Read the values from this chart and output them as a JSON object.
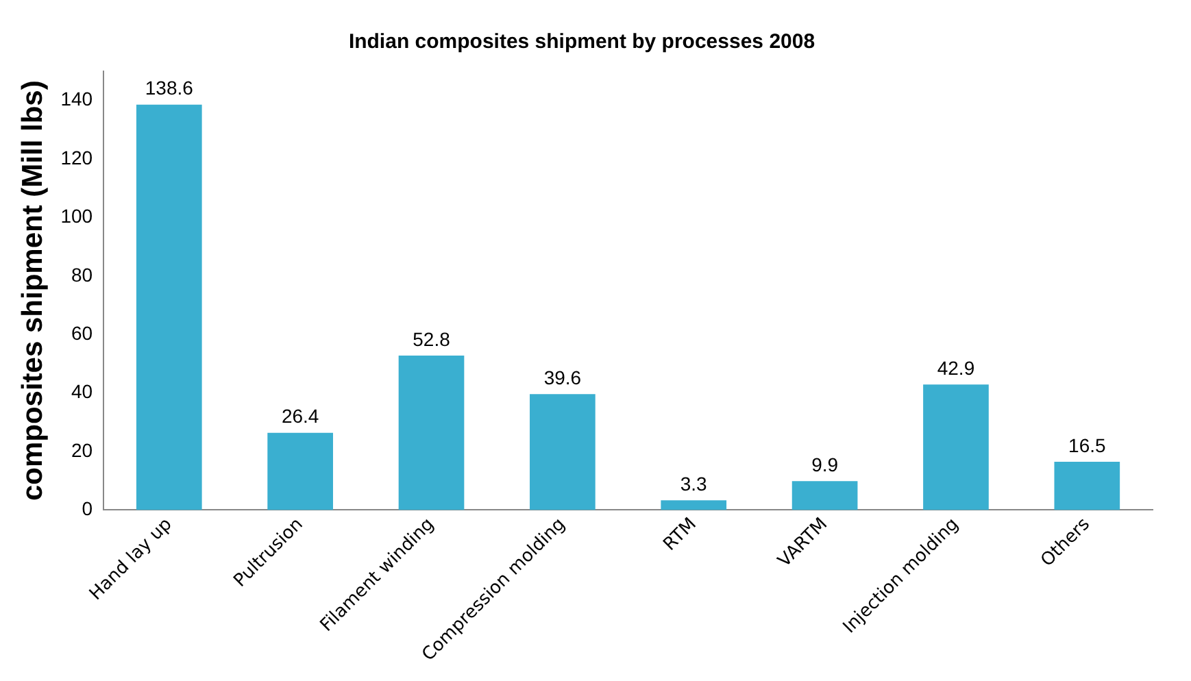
{
  "chart_data": {
    "type": "bar",
    "title": "Indian composites shipment by processes 2008",
    "ylabel": "composites shipment (Mill lbs)",
    "categories": [
      "Hand lay up",
      "Pultrusion",
      "Filament winding",
      "Compression molding",
      "RTM",
      "VARTM",
      "Injection molding",
      "Others"
    ],
    "values": [
      138.6,
      26.4,
      52.8,
      39.6,
      3.3,
      9.9,
      42.9,
      16.5
    ],
    "color": "#3aafd0",
    "ylim": [
      0,
      150
    ],
    "yticks": [
      0,
      20,
      40,
      60,
      80,
      100,
      120,
      140
    ],
    "grid": false,
    "legend": false,
    "data_labels": true
  }
}
